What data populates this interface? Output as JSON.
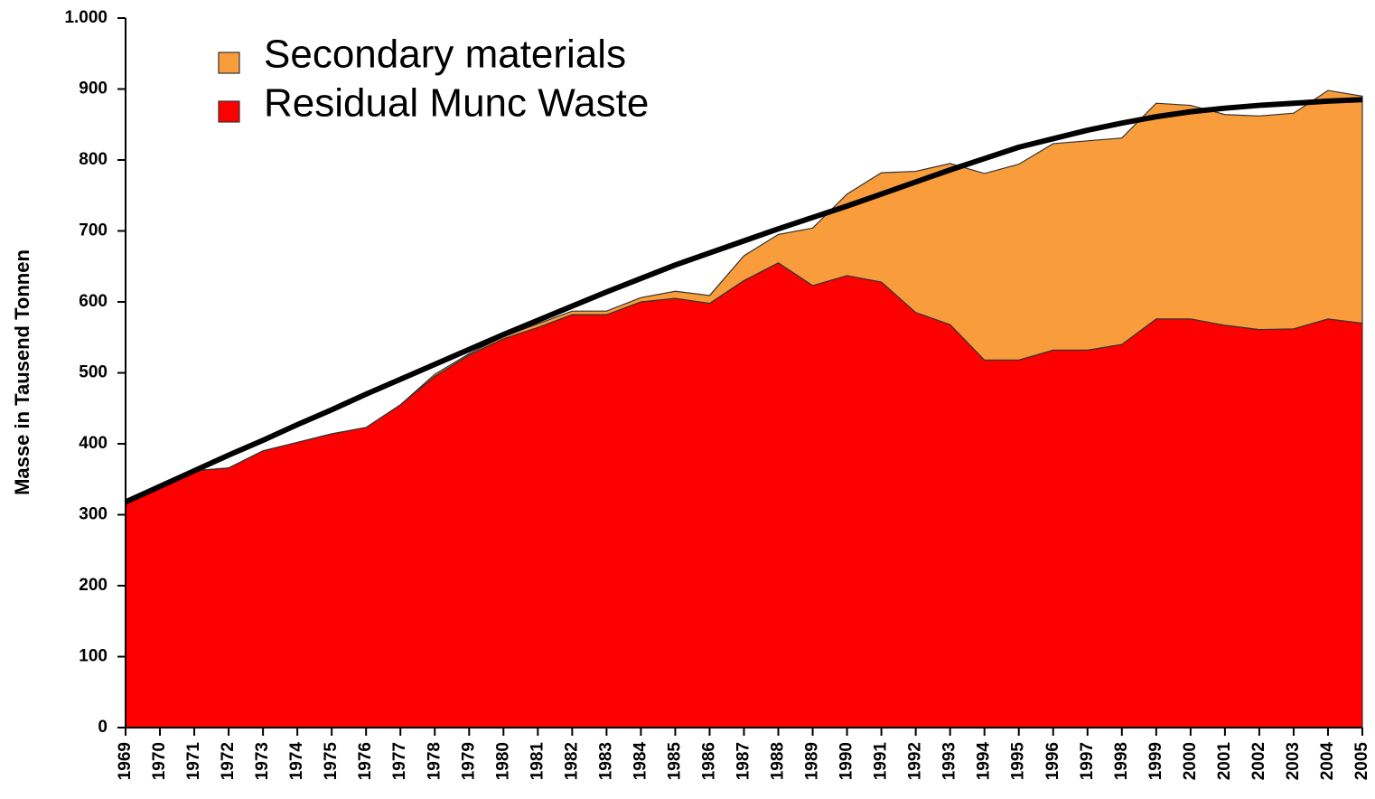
{
  "chart_data": {
    "type": "stacked_area",
    "y_label": "Masse in Tausend Tonnen",
    "x": [
      1969,
      1970,
      1971,
      1972,
      1973,
      1974,
      1975,
      1976,
      1977,
      1978,
      1979,
      1980,
      1981,
      1982,
      1983,
      1984,
      1985,
      1986,
      1987,
      1988,
      1989,
      1990,
      1991,
      1992,
      1993,
      1994,
      1995,
      1996,
      1997,
      1998,
      1999,
      2000,
      2001,
      2002,
      2003,
      2004,
      2005
    ],
    "series": [
      {
        "name": "Residual Munc Waste",
        "color": "#ff0000",
        "values": [
          318,
          340,
          362,
          366,
          390,
          402,
          414,
          423,
          455,
          495,
          525,
          548,
          564,
          582,
          582,
          600,
          605,
          598,
          630,
          655,
          623,
          637,
          628,
          585,
          568,
          518,
          518,
          532,
          532,
          540,
          576,
          576,
          567,
          561,
          562,
          576,
          570
        ]
      },
      {
        "name": "Secondary materials",
        "color": "#f99d3c",
        "values": [
          0,
          0,
          0,
          0,
          0,
          0,
          0,
          0,
          0,
          3,
          2,
          3,
          5,
          5,
          5,
          6,
          10,
          11,
          35,
          40,
          81,
          115,
          154,
          199,
          227,
          263,
          276,
          291,
          295,
          291,
          304,
          301,
          297,
          301,
          304,
          322,
          320
        ]
      }
    ],
    "legend_order": [
      1,
      0
    ],
    "trend": {
      "color": "#000000",
      "values": [
        318,
        340,
        362,
        384,
        405,
        427,
        448,
        470,
        491,
        512,
        533,
        554,
        574,
        594,
        614,
        633,
        652,
        669,
        686,
        703,
        719,
        735,
        752,
        769,
        786,
        802,
        818,
        830,
        842,
        852,
        861,
        868,
        873,
        877,
        880,
        883,
        885
      ]
    },
    "xlim": [
      1969,
      2005
    ],
    "ylim": [
      0,
      1000
    ],
    "yticks": [
      0,
      100,
      200,
      300,
      400,
      500,
      600,
      700,
      800,
      900,
      {
        "value": 1000,
        "label": "1.000"
      }
    ],
    "legend": "upper left"
  }
}
